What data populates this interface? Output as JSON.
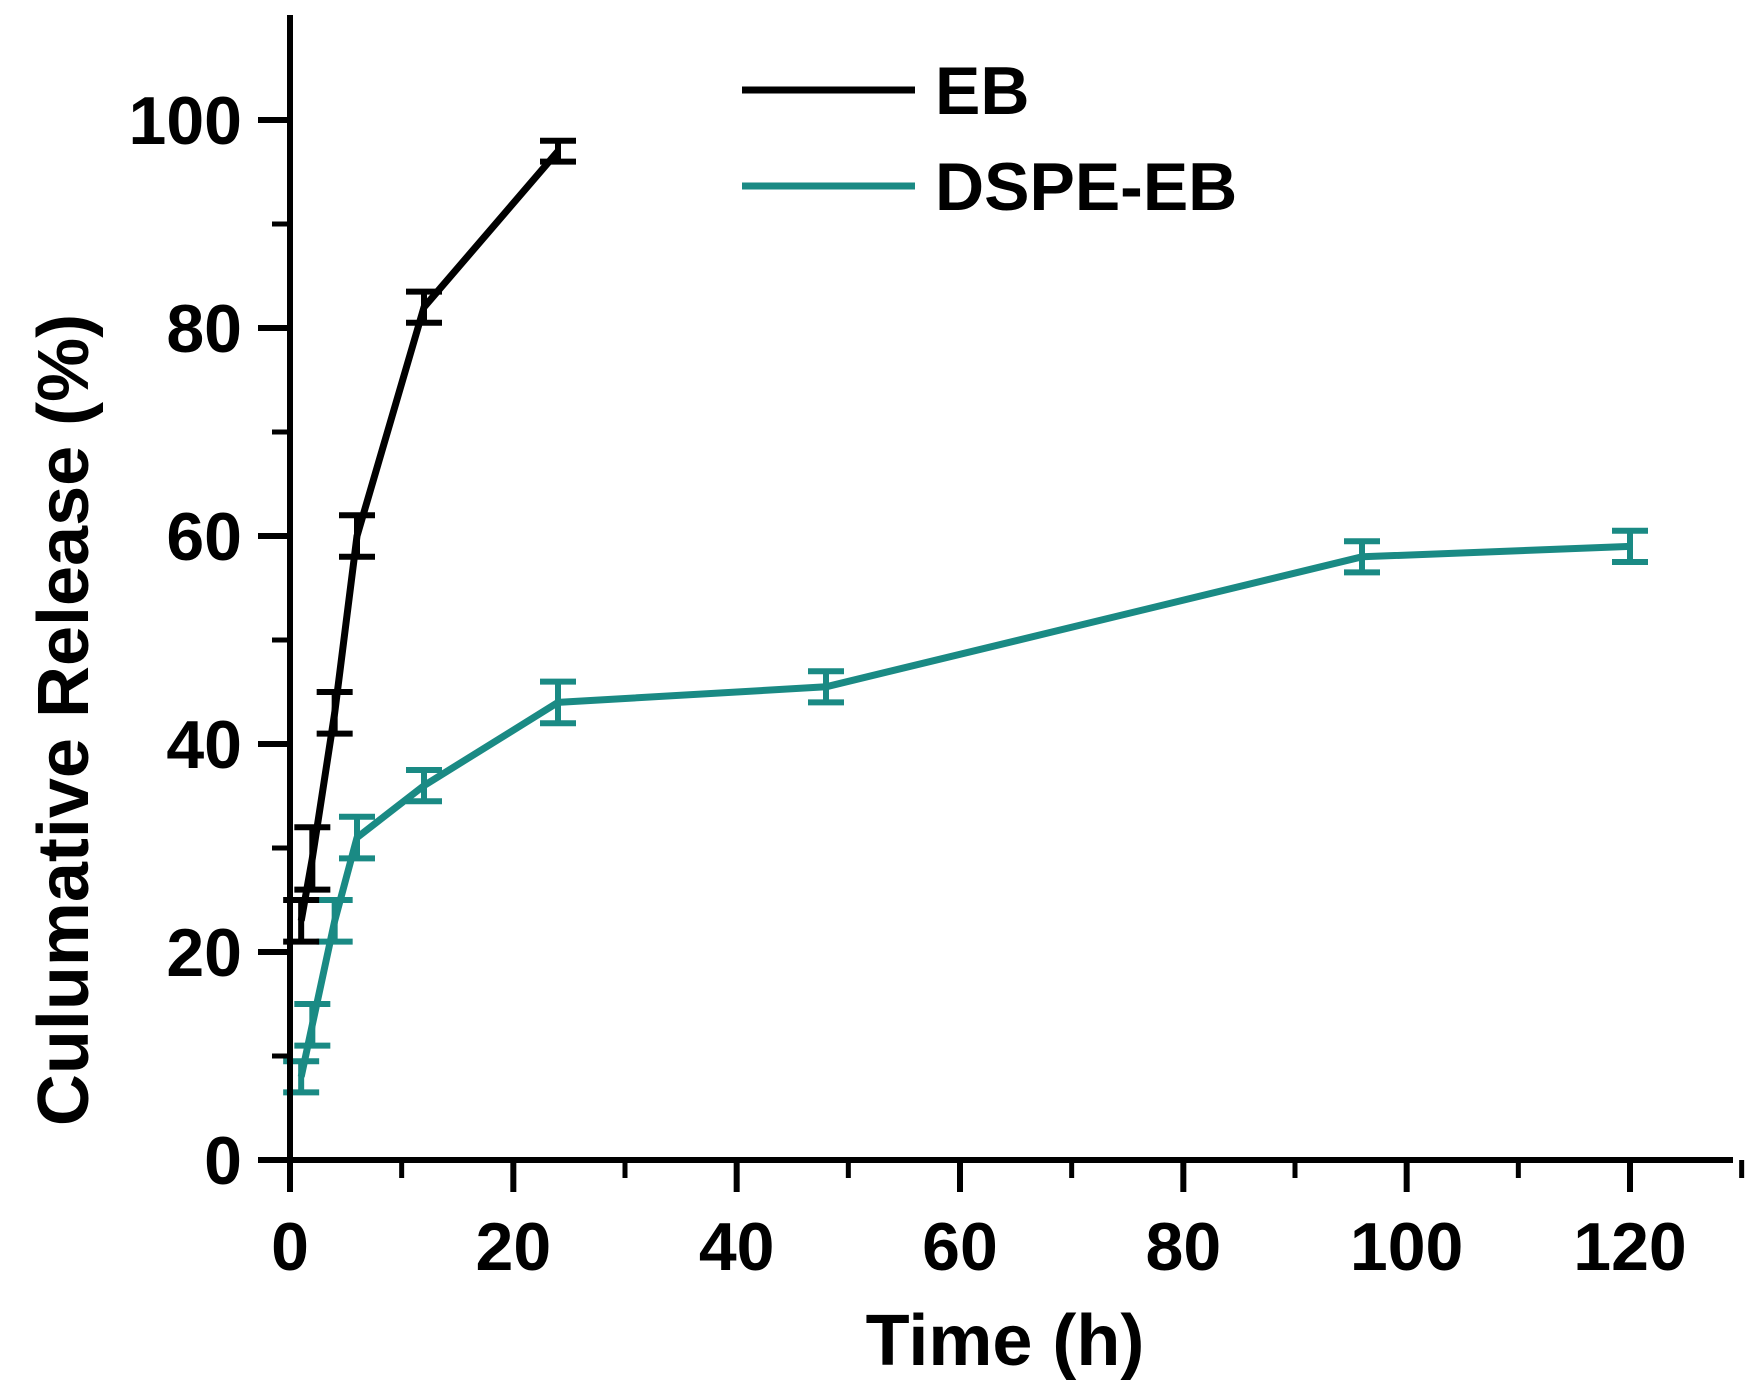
{
  "chart_data": {
    "type": "line",
    "title": "",
    "xlabel": "Time (h)",
    "ylabel": "Culumative Release (%)",
    "xlim": [
      0,
      130
    ],
    "ylim": [
      0,
      110
    ],
    "xticks": [
      0,
      20,
      40,
      60,
      80,
      100,
      120
    ],
    "yticks": [
      0,
      20,
      40,
      60,
      80,
      100
    ],
    "xtick_labels": [
      "0",
      "20",
      "40",
      "60",
      "80",
      "100",
      "120"
    ],
    "ytick_labels": [
      "0",
      "20",
      "40",
      "60",
      "80",
      "100"
    ],
    "legend_position": "top-center",
    "grid": false,
    "series": [
      {
        "name": "EB",
        "color": "#000000",
        "x": [
          1,
          2,
          4,
          6,
          12,
          24
        ],
        "y": [
          23,
          29,
          43,
          60,
          82,
          97
        ],
        "error": [
          2,
          3,
          2,
          2,
          1.5,
          1
        ]
      },
      {
        "name": "DSPE-EB",
        "color": "#1a8a84",
        "x": [
          1,
          2,
          4,
          6,
          12,
          24,
          48,
          96,
          120
        ],
        "y": [
          8,
          13,
          23,
          31,
          36,
          44,
          45.5,
          58,
          59
        ],
        "error": [
          1.5,
          2,
          2,
          2,
          1.5,
          2,
          1.5,
          1.5,
          1.5
        ]
      }
    ]
  }
}
